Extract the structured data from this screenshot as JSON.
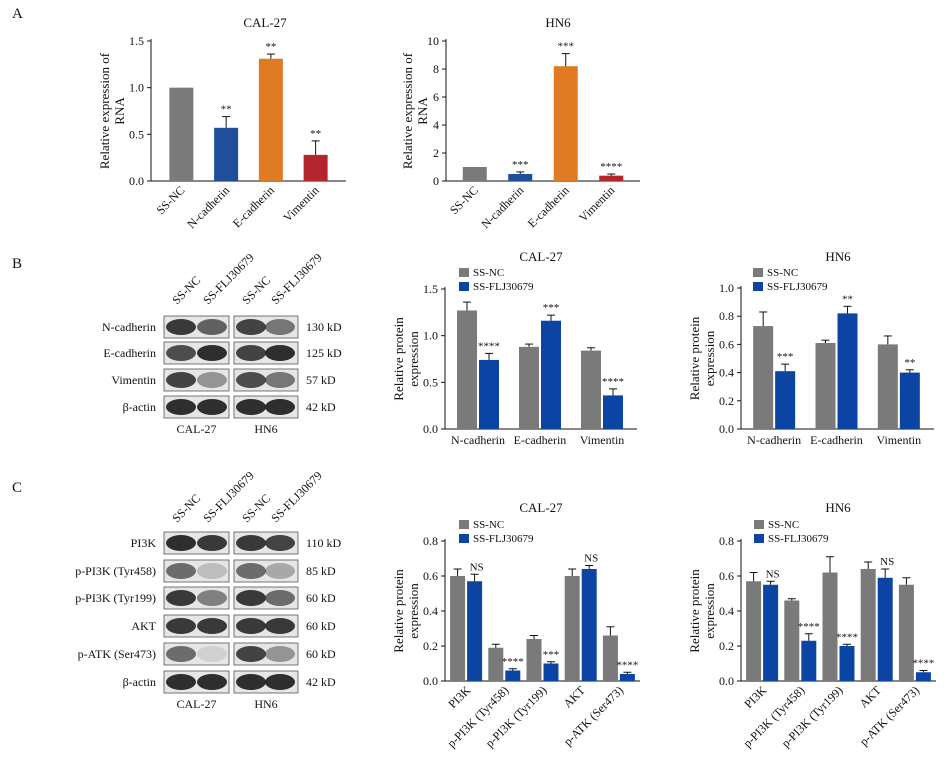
{
  "panels": {
    "A": {
      "letter": "A",
      "charts": [
        {
          "type": "bar",
          "title": "CAL-27",
          "ylabel": "Relative expression of RNA",
          "ylim": [
            0,
            1.5
          ],
          "yticks": [
            "0.0",
            "0.5",
            "1.0",
            "1.5"
          ],
          "categories": [
            "SS-NC",
            "N-cadherin",
            "E-cadherin",
            "Vimentin"
          ],
          "values": [
            1.0,
            0.57,
            1.31,
            0.28
          ],
          "errors": [
            0,
            0.12,
            0.05,
            0.15
          ],
          "sig": [
            "",
            "**",
            "**",
            "**"
          ],
          "colors": [
            "#7a7a7a",
            "#1f4e9c",
            "#e07a23",
            "#b3262d"
          ]
        },
        {
          "type": "bar",
          "title": "HN6",
          "ylabel": "Relative expression of RNA",
          "ylim": [
            0,
            10
          ],
          "yticks": [
            "0",
            "2",
            "4",
            "6",
            "8",
            "10"
          ],
          "categories": [
            "SS-NC",
            "N-cadherin",
            "E-cadherin",
            "Vimentin"
          ],
          "values": [
            1.0,
            0.5,
            8.2,
            0.38
          ],
          "errors": [
            0,
            0.15,
            0.9,
            0.12
          ],
          "sig": [
            "",
            "***",
            "***",
            "****"
          ],
          "colors": [
            "#7a7a7a",
            "#1f4e9c",
            "#e07a23",
            "#b3262d"
          ]
        }
      ]
    },
    "B": {
      "letter": "B",
      "blot": {
        "lanes": [
          "SS-NC",
          "SS-FLJ30679",
          "SS-NC",
          "SS-FLJ30679"
        ],
        "proteins": [
          "N-cadherin",
          "E-cadherin",
          "Vimentin",
          "β-actin"
        ],
        "sizes": [
          "130 kD",
          "125 kD",
          "57 kD",
          "42 kD"
        ],
        "cells": [
          "CAL-27",
          "HN6"
        ]
      },
      "charts": [
        {
          "type": "bar",
          "title": "CAL-27",
          "ylabel": "Relative protein expression",
          "ylim": [
            0,
            1.5
          ],
          "yticks": [
            "0.0",
            "0.5",
            "1.0",
            "1.5"
          ],
          "categories": [
            "N-cadherin",
            "E-cadherin",
            "Vimentin"
          ],
          "series": [
            {
              "name": "SS-NC",
              "values": [
                1.27,
                0.88,
                0.84
              ],
              "errors": [
                0.09,
                0.03,
                0.03
              ],
              "sig": [
                "",
                "",
                ""
              ]
            },
            {
              "name": "SS-FLJ30679",
              "values": [
                0.74,
                1.16,
                0.36
              ],
              "errors": [
                0.07,
                0.06,
                0.07
              ],
              "sig": [
                "****",
                "***",
                "****"
              ]
            }
          ]
        },
        {
          "type": "bar",
          "title": "HN6",
          "ylabel": "Relative protein expression",
          "ylim": [
            0,
            1.0
          ],
          "yticks": [
            "0.0",
            "0.2",
            "0.4",
            "0.6",
            "0.8",
            "1.0"
          ],
          "categories": [
            "N-cadherin",
            "E-cadherin",
            "Vimentin"
          ],
          "series": [
            {
              "name": "SS-NC",
              "values": [
                0.73,
                0.61,
                0.6
              ],
              "errors": [
                0.1,
                0.02,
                0.06
              ],
              "sig": [
                "",
                "",
                ""
              ]
            },
            {
              "name": "SS-FLJ30679",
              "values": [
                0.41,
                0.82,
                0.4
              ],
              "errors": [
                0.05,
                0.05,
                0.02
              ],
              "sig": [
                "***",
                "**",
                "**"
              ]
            }
          ]
        }
      ]
    },
    "C": {
      "letter": "C",
      "blot": {
        "lanes": [
          "SS-NC",
          "SS-FLJ30679",
          "SS-NC",
          "SS-FLJ30679"
        ],
        "proteins": [
          "PI3K",
          "p-PI3K (Tyr458)",
          "p-PI3K (Tyr199)",
          "AKT",
          "p-ATK (Ser473)",
          "β-actin"
        ],
        "sizes": [
          "110 kD",
          "85 kD",
          "60 kD",
          "60 kD",
          "60 kD",
          "42 kD"
        ],
        "cells": [
          "CAL-27",
          "HN6"
        ]
      },
      "charts": [
        {
          "type": "bar",
          "title": "CAL-27",
          "ylabel": "Relative protein expression",
          "ylim": [
            0,
            0.8
          ],
          "yticks": [
            "0.0",
            "0.2",
            "0.4",
            "0.6",
            "0.8"
          ],
          "categories": [
            "PI3K",
            "p-PI3K (Tyr458)",
            "p-PI3K (Tyr199)",
            "AKT",
            "p-ATK (Ser473)"
          ],
          "series": [
            {
              "name": "SS-NC",
              "values": [
                0.6,
                0.19,
                0.24,
                0.6,
                0.26
              ],
              "errors": [
                0.04,
                0.02,
                0.02,
                0.04,
                0.05
              ],
              "sig": [
                "",
                "",
                "",
                "",
                ""
              ]
            },
            {
              "name": "SS-FLJ30679",
              "values": [
                0.57,
                0.06,
                0.1,
                0.64,
                0.04
              ],
              "errors": [
                0.04,
                0.01,
                0.01,
                0.02,
                0.01
              ],
              "sig": [
                "NS",
                "****",
                "***",
                "NS",
                "****"
              ]
            }
          ]
        },
        {
          "type": "bar",
          "title": "HN6",
          "ylabel": "Relative protein expression",
          "ylim": [
            0,
            0.8
          ],
          "yticks": [
            "0.0",
            "0.2",
            "0.4",
            "0.6",
            "0.8"
          ],
          "categories": [
            "PI3K",
            "p-PI3K (Tyr458)",
            "p-PI3K (Tyr199)",
            "AKT",
            "p-ATK (Ser473)"
          ],
          "series": [
            {
              "name": "SS-NC",
              "values": [
                0.57,
                0.46,
                0.62,
                0.64,
                0.55
              ],
              "errors": [
                0.05,
                0.01,
                0.09,
                0.04,
                0.04
              ],
              "sig": [
                "",
                "",
                "",
                "",
                ""
              ]
            },
            {
              "name": "SS-FLJ30679",
              "values": [
                0.55,
                0.23,
                0.2,
                0.59,
                0.05
              ],
              "errors": [
                0.02,
                0.04,
                0.01,
                0.05,
                0.01
              ],
              "sig": [
                "NS",
                "****",
                "****",
                "NS",
                "****"
              ]
            }
          ]
        }
      ]
    }
  },
  "colors": {
    "nc": "#7a7a7a",
    "treated": "#0b44a3",
    "axis": "#111111"
  }
}
